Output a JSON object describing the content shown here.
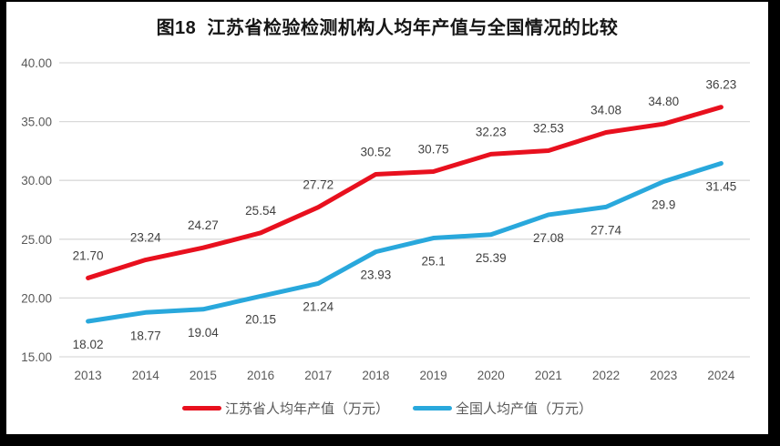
{
  "title": "图18  江苏省检验检测机构人均年产值与全国情况的比较",
  "colors": {
    "jiangsu_red": "#e8101e",
    "national_blue": "#29a8dc",
    "gridline": "#d9d9d9",
    "axis_label": "#595959",
    "data_label": "#404040",
    "frame": "#000000",
    "background": "#ffffff"
  },
  "chart_data": {
    "type": "line",
    "title": "图18  江苏省检验检测机构人均年产值与全国情况的比较",
    "categories": [
      "2013",
      "2014",
      "2015",
      "2016",
      "2017",
      "2018",
      "2019",
      "2020",
      "2021",
      "2022",
      "2023",
      "2024"
    ],
    "series": [
      {
        "name": "江苏省人均年产值（万元）",
        "color": "#e8101e",
        "values": [
          21.7,
          23.24,
          24.27,
          25.54,
          27.72,
          30.52,
          30.75,
          32.23,
          32.53,
          34.08,
          34.8,
          36.23
        ],
        "labels": [
          "21.70",
          "23.24",
          "24.27",
          "25.54",
          "27.72",
          "30.52",
          "30.75",
          "32.23",
          "32.53",
          "34.08",
          "34.80",
          "36.23"
        ],
        "label_position": "above"
      },
      {
        "name": "全国人均产值（万元）",
        "color": "#29a8dc",
        "values": [
          18.02,
          18.77,
          19.04,
          20.15,
          21.24,
          23.93,
          25.1,
          25.39,
          27.08,
          27.74,
          29.9,
          31.45
        ],
        "labels": [
          "18.02",
          "18.77",
          "19.04",
          "20.15",
          "21.24",
          "23.93",
          "25.1",
          "25.39",
          "27.08",
          "27.74",
          "29.9",
          "31.45"
        ],
        "label_position": "below"
      }
    ],
    "xlabel": "",
    "ylabel": "",
    "ylim": [
      15,
      40
    ],
    "ytick_step": 5,
    "yticks": [
      "15.00",
      "20.00",
      "25.00",
      "30.00",
      "35.00",
      "40.00"
    ],
    "grid": true,
    "legend_position": "bottom"
  }
}
